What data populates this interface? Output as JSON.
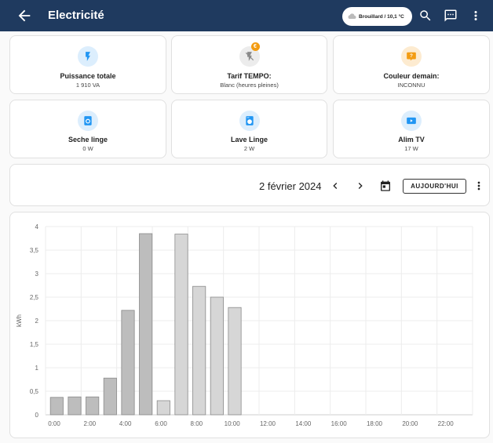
{
  "header": {
    "title": "Electricité",
    "weather": "Brouillard / 10,1 °C"
  },
  "tiles": [
    {
      "name": "Puissance totale",
      "value": "1 910 VA",
      "icon": "flash-icon",
      "color": "#2196f3"
    },
    {
      "name": "Tarif TEMPO:",
      "value": "Blanc (heures pleines)",
      "icon": "flash-off-icon",
      "badge": "€",
      "color": "#9e9e9e"
    },
    {
      "name": "Couleur demain:",
      "value": "INCONNU",
      "icon": "question-bubble-icon",
      "color": "#f39c12"
    },
    {
      "name": "Seche linge",
      "value": "0 W",
      "icon": "tumble-dryer-icon",
      "color": "#2196f3"
    },
    {
      "name": "Lave Linge",
      "value": "2 W",
      "icon": "washing-machine-icon",
      "color": "#2196f3"
    },
    {
      "name": "Alim TV",
      "value": "17 W",
      "icon": "youtube-tv-icon",
      "color": "#2196f3"
    }
  ],
  "date_picker": {
    "date": "2 février 2024",
    "today_label": "AUJOURD'HUI"
  },
  "chart_data": {
    "type": "bar",
    "ylabel": "kWh",
    "ylim": [
      0,
      4
    ],
    "yticks": [
      "0",
      "0,5",
      "1",
      "1,5",
      "2",
      "2,5",
      "3",
      "3,5",
      "4"
    ],
    "xticks": [
      "0:00",
      "2:00",
      "4:00",
      "6:00",
      "8:00",
      "10:00",
      "12:00",
      "14:00",
      "16:00",
      "18:00",
      "20:00",
      "22:00"
    ],
    "hours": [
      0,
      1,
      2,
      3,
      4,
      5,
      6,
      7,
      8,
      9,
      10
    ],
    "values": [
      0.37,
      0.38,
      0.38,
      0.78,
      2.22,
      3.85,
      0.3,
      3.84,
      2.73,
      2.5,
      2.28
    ],
    "colors": [
      "#bdbdbd",
      "#bdbdbd",
      "#bdbdbd",
      "#bdbdbd",
      "#bdbdbd",
      "#bdbdbd",
      "#d6d6d6",
      "#d6d6d6",
      "#d6d6d6",
      "#d6d6d6",
      "#d6d6d6"
    ],
    "grid": true
  }
}
